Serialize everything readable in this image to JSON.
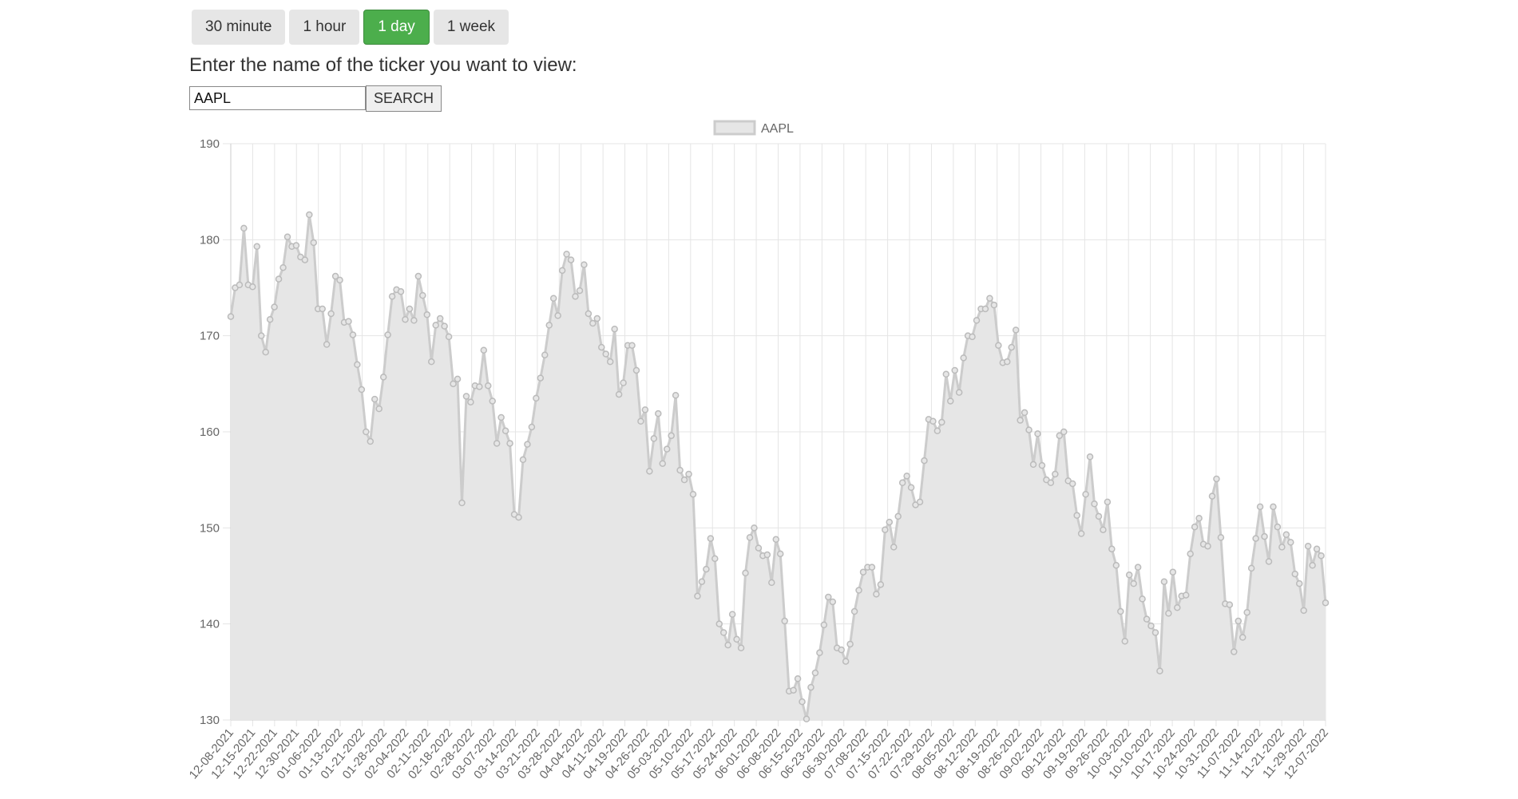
{
  "controls": {
    "ranges": [
      {
        "label": "30 minute",
        "active": false
      },
      {
        "label": "1 hour",
        "active": false
      },
      {
        "label": "1 day",
        "active": true
      },
      {
        "label": "1 week",
        "active": false
      }
    ],
    "prompt": "Enter the name of the ticker you want to view:",
    "ticker_value": "AAPL",
    "search_label": "SEARCH"
  },
  "colors": {
    "active": "#4cae4c",
    "series_fill": "#e6e6e6",
    "series_line": "#cccccc",
    "point": "#bbbbbb",
    "grid": "#e5e5e5"
  },
  "chart_data": {
    "type": "area",
    "legend_position": "top",
    "grid": true,
    "ylim": [
      130,
      190
    ],
    "y_ticks": [
      130,
      140,
      150,
      160,
      170,
      180,
      190
    ],
    "x_labels": [
      "12-08-2021",
      "12-15-2021",
      "12-22-2021",
      "12-30-2021",
      "01-06-2022",
      "01-13-2022",
      "01-21-2022",
      "01-28-2022",
      "02-04-2022",
      "02-11-2022",
      "02-18-2022",
      "02-28-2022",
      "03-07-2022",
      "03-14-2022",
      "03-21-2022",
      "03-28-2022",
      "04-04-2022",
      "04-11-2022",
      "04-19-2022",
      "04-26-2022",
      "05-03-2022",
      "05-10-2022",
      "05-17-2022",
      "05-24-2022",
      "06-01-2022",
      "06-08-2022",
      "06-15-2022",
      "06-23-2022",
      "06-30-2022",
      "07-08-2022",
      "07-15-2022",
      "07-22-2022",
      "07-29-2022",
      "08-05-2022",
      "08-12-2022",
      "08-19-2022",
      "08-26-2022",
      "09-02-2022",
      "09-12-2022",
      "09-19-2022",
      "09-26-2022",
      "10-03-2022",
      "10-10-2022",
      "10-17-2022",
      "10-24-2022",
      "10-31-2022",
      "11-07-2022",
      "11-14-2022",
      "11-21-2022",
      "11-29-2022",
      "12-07-2022"
    ],
    "series": [
      {
        "name": "AAPL",
        "values": [
          172,
          175,
          175.3,
          181.2,
          175.3,
          175.1,
          179.3,
          170,
          168.3,
          171.7,
          173,
          175.9,
          177.1,
          180.3,
          179.3,
          179.4,
          178.2,
          177.9,
          182.6,
          179.7,
          172.8,
          172.8,
          169.1,
          172.3,
          176.2,
          175.8,
          171.4,
          171.5,
          170.1,
          167,
          164.4,
          160,
          159,
          163.4,
          162.4,
          165.7,
          170.1,
          174.1,
          174.8,
          174.6,
          171.7,
          172.8,
          171.6,
          176.2,
          174.2,
          172.2,
          167.3,
          171.1,
          171.8,
          171,
          169.9,
          165,
          165.5,
          152.6,
          163.7,
          163.1,
          164.8,
          164.7,
          168.5,
          164.8,
          163.2,
          158.8,
          161.5,
          160.1,
          158.8,
          151.4,
          151.1,
          157.1,
          158.7,
          160.5,
          163.5,
          165.6,
          168,
          171.1,
          173.9,
          172.1,
          176.8,
          178.5,
          177.9,
          174.1,
          174.7,
          177.4,
          172.3,
          171.3,
          171.8,
          168.8,
          168.1,
          167.3,
          170.7,
          163.9,
          165.1,
          169,
          169,
          166.4,
          161.1,
          162.3,
          155.9,
          159.3,
          161.9,
          156.7,
          158.2,
          159.6,
          163.8,
          156,
          155,
          155.6,
          153.5,
          142.9,
          144.4,
          145.7,
          148.9,
          146.8,
          140,
          139.1,
          137.8,
          141,
          138.4,
          137.5,
          145.3,
          149,
          150,
          147.9,
          147.1,
          147.2,
          144.3,
          148.8,
          147.3,
          140.3,
          133,
          133.1,
          134.3,
          131.9,
          130.1,
          133.4,
          134.9,
          137,
          139.9,
          142.8,
          142.3,
          137.5,
          137.3,
          136.1,
          137.9,
          141.3,
          143.5,
          145.4,
          145.9,
          145.9,
          143.1,
          144.1,
          149.8,
          150.6,
          148,
          151.2,
          154.7,
          155.4,
          154.2,
          152.4,
          152.7,
          157,
          161.3,
          161.1,
          160.1,
          161,
          166,
          163.2,
          166.4,
          164.1,
          167.7,
          170,
          169.9,
          171.6,
          172.8,
          172.8,
          173.9,
          173.2,
          169,
          167.2,
          167.3,
          168.8,
          170.6,
          161.2,
          162,
          160.2,
          156.6,
          159.8,
          156.5,
          155,
          154.7,
          155.6,
          159.6,
          160,
          154.9,
          154.6,
          151.3,
          149.4,
          153.5,
          157.4,
          152.5,
          151.2,
          149.8,
          152.7,
          147.8,
          146.1,
          141.3,
          138.2,
          145.1,
          144.2,
          145.9,
          142.6,
          140.5,
          139.8,
          139.1,
          135.1,
          144.4,
          141.1,
          145.4,
          141.7,
          142.9,
          143,
          147.3,
          150.1,
          151,
          148.3,
          148.1,
          153.3,
          155.1,
          149,
          142.1,
          142,
          137.1,
          140.3,
          138.6,
          141.2,
          145.8,
          148.9,
          152.2,
          149.1,
          146.5,
          152.2,
          150.1,
          148,
          149.3,
          148.5,
          145.2,
          144.2,
          141.4,
          148.1,
          146.1,
          147.8,
          147.1,
          142.2
        ]
      }
    ]
  }
}
